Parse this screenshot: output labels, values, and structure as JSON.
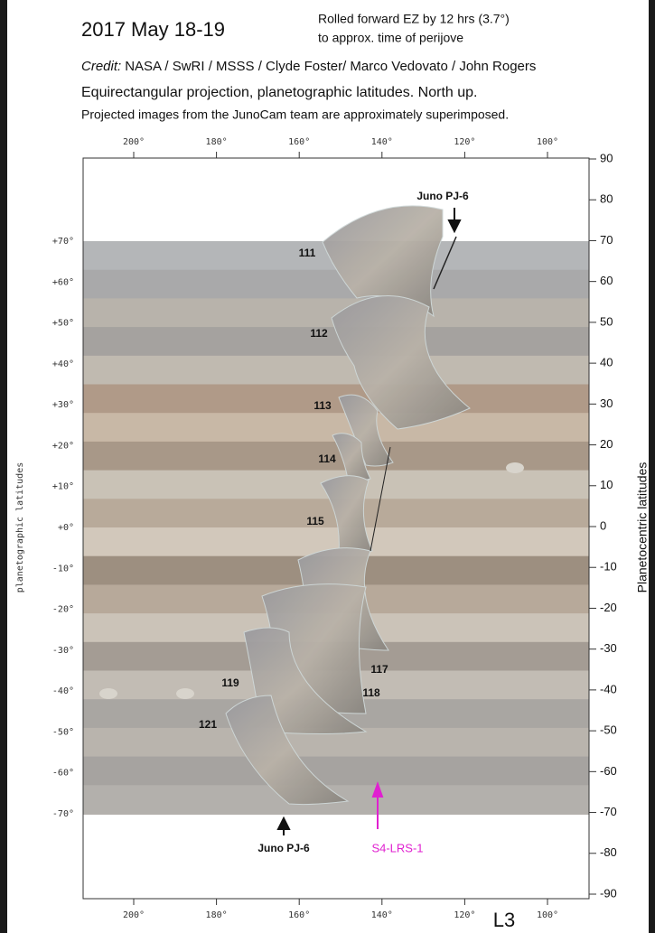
{
  "header": {
    "title": "2017 May 18-19",
    "note_line1": "Rolled forward EZ by 12 hrs (3.7°)",
    "note_line2": "to approx. time of perijove",
    "credit_label": "Credit:",
    "credit_text": "NASA / SwRI / MSSS / Clyde Foster/ Marco Vedovato / John Rogers",
    "projection": "Equirectangular projection, planetographic latitudes. North up.",
    "subtitle": "Projected images from the JunoCam team are approximately superimposed."
  },
  "axes": {
    "top_labels": [
      "200°",
      "180°",
      "160°",
      "140°",
      "120°",
      "100°"
    ],
    "bottom_labels": [
      "200°",
      "180°",
      "160°",
      "140°",
      "120°",
      "100°"
    ],
    "bottom_title": "L3",
    "left_labels": [
      "+70°",
      "+60°",
      "+50°",
      "+40°",
      "+30°",
      "+20°",
      "+10°",
      "+0°",
      "-10°",
      "-20°",
      "-30°",
      "-40°",
      "-50°",
      "-60°",
      "-70°"
    ],
    "left_title": "planetographic latitudes",
    "right_labels": [
      "90",
      "80",
      "70",
      "60",
      "50",
      "40",
      "30",
      "20",
      "10",
      "0",
      "-10",
      "-20",
      "-30",
      "-40",
      "-50",
      "-60",
      "-70",
      "-80",
      "-90"
    ],
    "right_title": "Planetocentric latitudes"
  },
  "annotations": {
    "image_numbers": [
      "111",
      "112",
      "113",
      "114",
      "115",
      "117",
      "118",
      "119",
      "121"
    ],
    "juno_top": "Juno PJ-6",
    "juno_bottom": "Juno PJ-6",
    "storm": "S4-LRS-1"
  }
}
